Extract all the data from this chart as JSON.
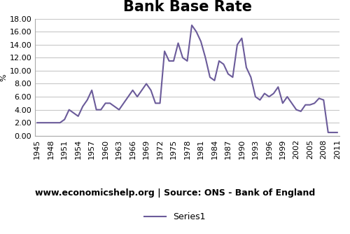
{
  "title": "Bank Base Rate",
  "ylabel": "%",
  "source_text": "www.economicshelp.org | Source: ONS - Bank of England",
  "legend_label": "Series1",
  "line_color": "#6B5B9A",
  "background_color": "#ffffff",
  "ylim": [
    0.0,
    18.0
  ],
  "yticks": [
    0.0,
    2.0,
    4.0,
    6.0,
    8.0,
    10.0,
    12.0,
    14.0,
    16.0,
    18.0
  ],
  "ytick_labels": [
    "0.00",
    "2.00",
    "4.00",
    "6.00",
    "8.00",
    "10.00",
    "12.00",
    "14.00",
    "16.00",
    "18.00"
  ],
  "years": [
    1945,
    1946,
    1947,
    1948,
    1949,
    1950,
    1951,
    1952,
    1953,
    1954,
    1955,
    1956,
    1957,
    1958,
    1959,
    1960,
    1961,
    1962,
    1963,
    1964,
    1965,
    1966,
    1967,
    1968,
    1969,
    1970,
    1971,
    1972,
    1973,
    1974,
    1975,
    1976,
    1977,
    1978,
    1979,
    1980,
    1981,
    1982,
    1983,
    1984,
    1985,
    1986,
    1987,
    1988,
    1989,
    1990,
    1991,
    1992,
    1993,
    1994,
    1995,
    1996,
    1997,
    1998,
    1999,
    2000,
    2001,
    2002,
    2003,
    2004,
    2005,
    2006,
    2007,
    2008,
    2009,
    2010,
    2011
  ],
  "values": [
    2.0,
    2.0,
    2.0,
    2.0,
    2.0,
    2.0,
    2.5,
    4.0,
    3.5,
    3.0,
    4.5,
    5.5,
    7.0,
    4.0,
    4.0,
    5.0,
    5.0,
    4.5,
    4.0,
    5.0,
    6.0,
    7.0,
    6.0,
    7.0,
    8.0,
    7.0,
    5.0,
    5.0,
    13.0,
    11.5,
    11.5,
    14.25,
    12.0,
    11.5,
    17.0,
    16.0,
    14.5,
    12.0,
    9.0,
    8.5,
    11.5,
    11.0,
    9.5,
    9.0,
    14.0,
    15.0,
    10.5,
    9.0,
    6.0,
    5.5,
    6.5,
    6.0,
    6.5,
    7.5,
    5.0,
    6.0,
    5.0,
    4.0,
    3.75,
    4.75,
    4.75,
    5.0,
    5.75,
    5.5,
    0.5,
    0.5,
    0.5
  ],
  "xtick_years": [
    1945,
    1948,
    1951,
    1954,
    1957,
    1960,
    1963,
    1966,
    1969,
    1972,
    1975,
    1978,
    1981,
    1984,
    1987,
    1990,
    1993,
    1996,
    1999,
    2002,
    2005,
    2008,
    2011
  ],
  "title_fontsize": 15,
  "axis_fontsize": 8,
  "source_fontsize": 9,
  "legend_fontsize": 9,
  "grid_color": "#c8c8c8",
  "spine_color": "#aaaaaa"
}
